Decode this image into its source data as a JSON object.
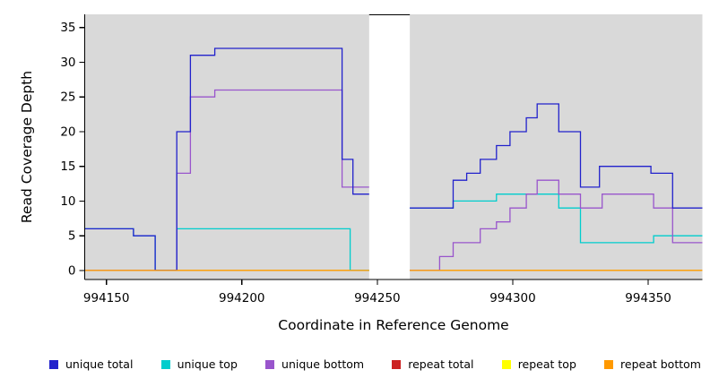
{
  "chart_data": {
    "type": "line",
    "style": "step",
    "title": "",
    "xlabel": "Coordinate in Reference Genome",
    "ylabel": "Read Coverage Depth",
    "xlim": [
      994142,
      994370
    ],
    "ylim": [
      -1.3,
      36.9
    ],
    "x_ticks": [
      994150,
      994200,
      994250,
      994300,
      994350
    ],
    "y_ticks": [
      0,
      5,
      10,
      15,
      20,
      25,
      30,
      35
    ],
    "panel_bg": "#d9d9d9",
    "grid": "off",
    "masked_region": {
      "x0": 994247,
      "x1": 994262,
      "color": "#ffffff"
    },
    "series": [
      {
        "name": "repeat total",
        "color": "#cc2222",
        "parts": [
          {
            "x": [
              994142,
              994247
            ],
            "v": [
              0
            ]
          },
          {
            "x": [
              994262,
              994370
            ],
            "v": [
              0
            ]
          }
        ]
      },
      {
        "name": "repeat top",
        "color": "#ffff00",
        "parts": [
          {
            "x": [
              994142,
              994247
            ],
            "v": [
              0
            ]
          },
          {
            "x": [
              994262,
              994370
            ],
            "v": [
              0
            ]
          }
        ]
      },
      {
        "name": "unique top",
        "color": "#00cdcd",
        "parts": [
          {
            "x": [
              994142,
              994160,
              994168,
              994176,
              994240,
              994247
            ],
            "v": [
              6,
              5,
              0,
              6,
              0
            ]
          },
          {
            "x": [
              994262,
              994278,
              994294,
              994317,
              994325,
              994352,
              994370
            ],
            "v": [
              9,
              10,
              11,
              9,
              4,
              5
            ]
          }
        ]
      },
      {
        "name": "unique bottom",
        "color": "#9955cc",
        "parts": [
          {
            "x": [
              994142,
              994176,
              994181,
              994190,
              994237,
              994247
            ],
            "v": [
              0,
              14,
              25,
              26,
              12
            ]
          },
          {
            "x": [
              994262,
              994273,
              994278,
              994288,
              994294,
              994299,
              994305,
              994309,
              994317,
              994325,
              994333,
              994352,
              994359,
              994370
            ],
            "v": [
              0,
              2,
              4,
              6,
              7,
              9,
              11,
              13,
              11,
              9,
              11,
              9,
              4
            ]
          }
        ]
      },
      {
        "name": "unique total",
        "color": "#2222cc",
        "parts": [
          {
            "x": [
              994142,
              994160,
              994168,
              994176,
              994181,
              994190,
              994237,
              994241,
              994247
            ],
            "v": [
              6,
              5,
              0,
              20,
              31,
              32,
              16,
              11
            ]
          },
          {
            "x": [
              994262,
              994278,
              994283,
              994288,
              994294,
              994299,
              994305,
              994309,
              994317,
              994325,
              994332,
              994351,
              994359,
              994370
            ],
            "v": [
              9,
              13,
              14,
              16,
              18,
              20,
              22,
              24,
              20,
              12,
              15,
              14,
              9
            ]
          }
        ]
      },
      {
        "name": "repeat bottom",
        "color": "#ff9900",
        "parts": [
          {
            "x": [
              994142,
              994247
            ],
            "v": [
              0
            ]
          },
          {
            "x": [
              994262,
              994370
            ],
            "v": [
              0
            ]
          }
        ]
      }
    ],
    "legend": [
      {
        "label": "unique total",
        "color": "#2222cc"
      },
      {
        "label": "unique top",
        "color": "#00cdcd"
      },
      {
        "label": "unique bottom",
        "color": "#9955cc"
      },
      {
        "label": "repeat total",
        "color": "#cc2222"
      },
      {
        "label": "repeat top",
        "color": "#ffff00"
      },
      {
        "label": "repeat bottom",
        "color": "#ff9900"
      }
    ]
  }
}
